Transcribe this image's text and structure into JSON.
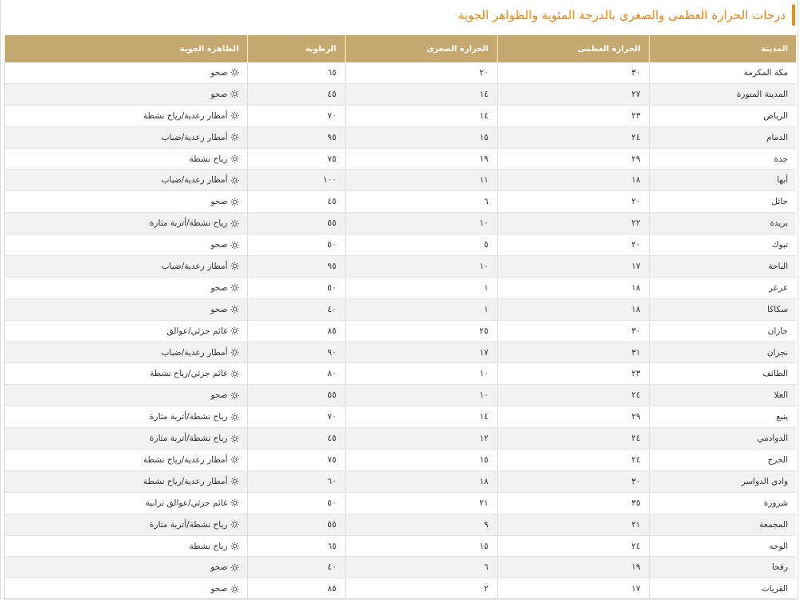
{
  "header": {
    "title": "درجات الحرارة العظمى والصغرى بالدرجة المئوية والظواهر الجوية"
  },
  "table": {
    "columns": [
      "المدينة",
      "الحرارة العظمى",
      "الحرارة الصغرى",
      "الرطوبة",
      "الظاهرة الجوية"
    ],
    "rows": [
      [
        "مكة المكرمة",
        "٣٠",
        "٢٠",
        "٦٥",
        "صحو"
      ],
      [
        "المدينة المنورة",
        "٢٧",
        "١٤",
        "٤٥",
        "صحو"
      ],
      [
        "الرياض",
        "٢٣",
        "١٤",
        "٧٠",
        "أمطار رعدية/رياح نشطة"
      ],
      [
        "الدمام",
        "٢٤",
        "١٥",
        "٩٥",
        "أمطار رعدية/ضباب"
      ],
      [
        "جدة",
        "٢٩",
        "١٩",
        "٧٥",
        "رياح نشطة"
      ],
      [
        "أبها",
        "١٨",
        "١١",
        "١٠٠",
        "أمطار رعدية/ضباب"
      ],
      [
        "حائل",
        "٢٠",
        "٦",
        "٤٥",
        "صحو"
      ],
      [
        "بريدة",
        "٢٢",
        "١٠",
        "٥٥",
        "رياح نشطة/أتربة مثارة"
      ],
      [
        "تبوك",
        "٢٠",
        "٥",
        "٥٠",
        "صحو"
      ],
      [
        "الباحة",
        "١٧",
        "١٠",
        "٩٥",
        "أمطار رعدية/ضباب"
      ],
      [
        "عرعر",
        "١٨",
        "١",
        "٥٠",
        "صحو"
      ],
      [
        "سكاكا",
        "١٨",
        "١",
        "٤٠",
        "صحو"
      ],
      [
        "جازان",
        "٣٠",
        "٢٥",
        "٨٥",
        "غائم جزئي/عوالق"
      ],
      [
        "نجران",
        "٣١",
        "١٧",
        "٩٠",
        "أمطار رعدية/ضباب"
      ],
      [
        "الطائف",
        "٢٣",
        "١٠",
        "٨٠",
        "غائم جزئي/رياح نشطة"
      ],
      [
        "العلا",
        "٢٤",
        "١٠",
        "٥٥",
        "صحو"
      ],
      [
        "ينبع",
        "٢٩",
        "١٤",
        "٧٠",
        "رياح نشطة/أتربة مثارة"
      ],
      [
        "الدوادمي",
        "٢٤",
        "١٢",
        "٤٥",
        "رياح نشطة/أتربة مثارة"
      ],
      [
        "الخرج",
        "٢٤",
        "١٥",
        "٧٥",
        "أمطار رعدية/رياح نشطة"
      ],
      [
        "وادي الدواسر",
        "٣٠",
        "١٨",
        "٦٠",
        "أمطار رعدية/رياح نشطة"
      ],
      [
        "شرورة",
        "٣٥",
        "٢١",
        "٥٠",
        "غائم جزئي/عوالق ترابية"
      ],
      [
        "المجمعة",
        "٢١",
        "٩",
        "٥٥",
        "رياح نشطة/أتربة مثارة"
      ],
      [
        "الوجه",
        "٢٤",
        "١٥",
        "٦٥",
        "رياح نشطة"
      ],
      [
        "رفحا",
        "١٩",
        "٦",
        "٤٠",
        "صحو"
      ],
      [
        "القريات",
        "١٧",
        "٢",
        "٨٥",
        "صحو"
      ]
    ]
  }
}
